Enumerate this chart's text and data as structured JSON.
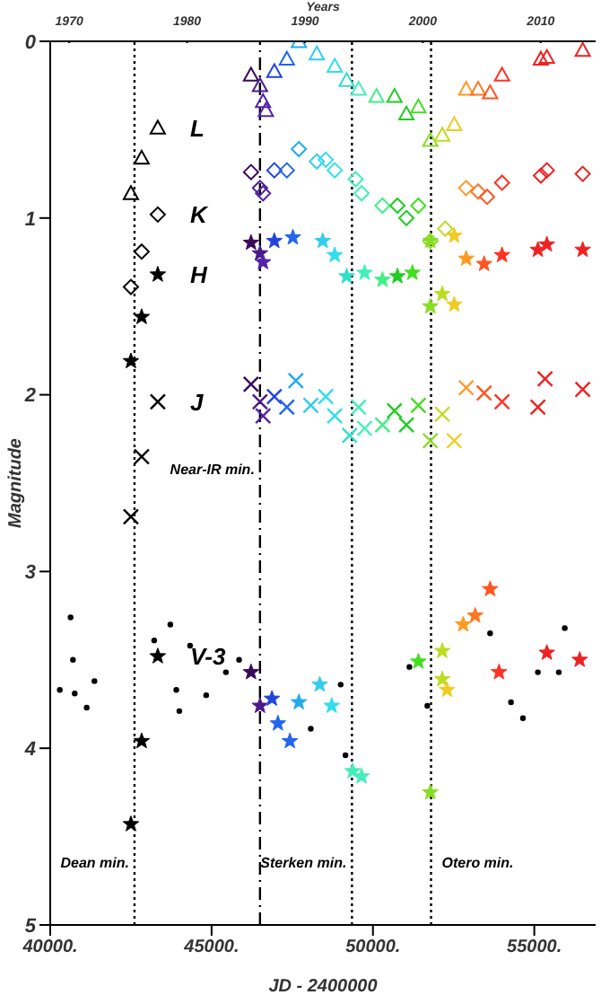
{
  "chart_data": {
    "type": "scatter",
    "xlabel": "JD - 2400000",
    "ylabel": "Magnitude",
    "x2label": "Years",
    "xlim": [
      40000,
      56900
    ],
    "xticks": [
      {
        "value": 40000,
        "label": "40000."
      },
      {
        "value": 45000,
        "label": "45000."
      },
      {
        "value": 50000,
        "label": "50000."
      },
      {
        "value": 55000,
        "label": "55000."
      }
    ],
    "x2lim": [
      1968.39,
      2014.66
    ],
    "x2ticks": [
      1970,
      1980,
      1990,
      2000,
      2010
    ],
    "ylim": [
      5,
      0
    ],
    "yticks": [
      0,
      1,
      2,
      3,
      4,
      5
    ],
    "ref_lines": [
      {
        "axis": "x",
        "value": 42611,
        "line_style": "dotted",
        "label": "Dean min."
      },
      {
        "axis": "x",
        "value": 46500,
        "line_style": "dashed",
        "label": "Near-IR min."
      },
      {
        "axis": "x",
        "value": 49350,
        "line_style": "dotted",
        "label": "Sterken min."
      },
      {
        "axis": "x",
        "value": 51800,
        "line_style": "dotted",
        "label": "Otero min."
      }
    ],
    "series": [
      {
        "name": "L",
        "marker": "triangle",
        "x": [
          42500,
          42833,
          43333,
          46222,
          46500,
          46594,
          46683,
          46944,
          47333,
          47704,
          48260,
          48815,
          49185,
          49556,
          50111,
          50667,
          51037,
          51407,
          51778,
          52148,
          52519,
          52889,
          53259,
          53630,
          54000,
          55204,
          55389,
          56500
        ],
        "values": [
          0.86,
          0.66,
          0.49,
          0.19,
          0.25,
          0.34,
          0.39,
          0.17,
          0.1,
          0.0,
          0.07,
          0.14,
          0.22,
          0.27,
          0.31,
          0.31,
          0.41,
          0.37,
          0.56,
          0.53,
          0.47,
          0.27,
          0.27,
          0.29,
          0.19,
          0.1,
          0.09,
          0.05
        ],
        "colors": [
          "#000000",
          "#000000",
          "#000000",
          "#3a0a5a",
          "#4a1a8a",
          "#5522aa",
          "#5522aa",
          "#2244dd",
          "#2266ee",
          "#22aaee",
          "#33ccee",
          "#33ddee",
          "#33ddcc",
          "#44eebb",
          "#44ee88",
          "#22cc22",
          "#22cc22",
          "#44dd22",
          "#88dd22",
          "#bbdd22",
          "#eecc22",
          "#ff9922",
          "#ff7722",
          "#ff5522",
          "#ff3322",
          "#ee2222",
          "#ee2222",
          "#ee2222"
        ]
      },
      {
        "name": "K",
        "marker": "diamond",
        "x": [
          42500,
          42833,
          43333,
          46222,
          46500,
          46594,
          46944,
          47333,
          47704,
          48260,
          48537,
          48815,
          49463,
          49648,
          50296,
          50759,
          51037,
          51407,
          51778,
          52241,
          52889,
          53259,
          53537,
          54000,
          55204,
          55389,
          56500
        ],
        "values": [
          1.39,
          1.19,
          0.98,
          0.74,
          0.83,
          0.86,
          0.73,
          0.73,
          0.61,
          0.68,
          0.67,
          0.73,
          0.78,
          0.86,
          0.93,
          0.93,
          1.0,
          0.93,
          1.13,
          1.06,
          0.83,
          0.85,
          0.88,
          0.8,
          0.76,
          0.73,
          0.75
        ],
        "colors": [
          "#000000",
          "#000000",
          "#000000",
          "#3a0a5a",
          "#4a1a8a",
          "#5522aa",
          "#2244dd",
          "#2266ee",
          "#22aaee",
          "#33ccee",
          "#33ddee",
          "#33ddee",
          "#44eebb",
          "#44eebb",
          "#44ee88",
          "#22cc22",
          "#22cc22",
          "#44dd22",
          "#88dd22",
          "#bbdd22",
          "#ff9922",
          "#ff7722",
          "#ff5522",
          "#ff3322",
          "#ee2222",
          "#ee2222",
          "#ee2222"
        ]
      },
      {
        "name": "H",
        "marker": "star",
        "x": [
          42500,
          42833,
          43333,
          46222,
          46500,
          46594,
          46944,
          47519,
          48444,
          48815,
          49185,
          49741,
          50296,
          50759,
          51222,
          51778,
          51778,
          52148,
          52519,
          52519,
          52889,
          53444,
          54000,
          55111,
          55389,
          56500
        ],
        "values": [
          1.81,
          1.56,
          1.32,
          1.14,
          1.2,
          1.25,
          1.13,
          1.11,
          1.13,
          1.21,
          1.33,
          1.31,
          1.35,
          1.33,
          1.31,
          1.5,
          1.13,
          1.43,
          1.49,
          1.1,
          1.23,
          1.26,
          1.21,
          1.18,
          1.15,
          1.18
        ],
        "colors": [
          "#000000",
          "#000000",
          "#000000",
          "#3a0a5a",
          "#4a1a8a",
          "#5522aa",
          "#2244dd",
          "#2266ee",
          "#33ccee",
          "#33ddee",
          "#33ddcc",
          "#44eebb",
          "#44ee88",
          "#22cc22",
          "#44dd22",
          "#88dd22",
          "#88dd22",
          "#bbdd22",
          "#eecc22",
          "#eecc22",
          "#ff9922",
          "#ff5522",
          "#ff3322",
          "#ee2222",
          "#ee2222",
          "#ee2222"
        ]
      },
      {
        "name": "J",
        "marker": "cross",
        "x": [
          42500,
          42833,
          43333,
          46222,
          46500,
          46594,
          46944,
          47333,
          47611,
          48074,
          48537,
          48815,
          49278,
          49556,
          49741,
          50296,
          50667,
          51037,
          51407,
          51778,
          52148,
          52519,
          52889,
          53444,
          54000,
          55111,
          55333,
          56500
        ],
        "values": [
          2.69,
          2.35,
          2.04,
          1.94,
          2.04,
          2.12,
          2.01,
          2.07,
          1.92,
          2.06,
          2.01,
          2.12,
          2.23,
          2.07,
          2.19,
          2.17,
          2.09,
          2.17,
          2.06,
          2.26,
          2.11,
          2.26,
          1.96,
          1.99,
          2.04,
          2.07,
          1.91,
          1.97
        ],
        "colors": [
          "#000000",
          "#000000",
          "#000000",
          "#3a0a5a",
          "#4a1a8a",
          "#5522aa",
          "#2244dd",
          "#2266ee",
          "#22aaee",
          "#33ccee",
          "#33ddee",
          "#33ddee",
          "#33ddcc",
          "#44eebb",
          "#44eebb",
          "#44ee88",
          "#22cc22",
          "#22cc22",
          "#44dd22",
          "#88dd22",
          "#bbdd22",
          "#eecc22",
          "#ff9922",
          "#ff5522",
          "#ff3322",
          "#ee2222",
          "#ee2222",
          "#ee2222"
        ]
      },
      {
        "name": "V-3",
        "marker": "star",
        "x": [
          42500,
          42833,
          43333,
          46222,
          46500,
          46870,
          47056,
          47426,
          47704,
          48352,
          48722,
          49370,
          49648,
          51407,
          51778,
          52148,
          52148,
          52296,
          52796,
          53167,
          53630,
          53907,
          55389,
          56407
        ],
        "values": [
          4.43,
          3.96,
          3.48,
          3.57,
          3.76,
          3.72,
          3.86,
          3.96,
          3.74,
          3.64,
          3.76,
          4.13,
          4.16,
          3.51,
          4.25,
          3.45,
          3.61,
          3.67,
          3.3,
          3.25,
          3.1,
          3.57,
          3.46,
          3.5
        ],
        "colors": [
          "#000000",
          "#000000",
          "#000000",
          "#3a0a5a",
          "#4a1a8a",
          "#2244dd",
          "#2266ee",
          "#2266ee",
          "#22aaee",
          "#33ccee",
          "#33ddee",
          "#44eebb",
          "#44eebb",
          "#44dd22",
          "#88dd22",
          "#bbdd22",
          "#bbdd22",
          "#eecc22",
          "#ff9922",
          "#ff7722",
          "#ff5522",
          "#ff3322",
          "#ee2222",
          "#ee2222"
        ]
      },
      {
        "marker": "circle",
        "color": "#000000",
        "x": [
          40296,
          40630,
          40704,
          40759,
          41130,
          41370,
          43222,
          43722,
          43907,
          44000,
          44333,
          44833,
          45444,
          45852,
          48074,
          49000,
          49148,
          51130,
          51685,
          53630,
          54278,
          54648,
          55111,
          55759,
          55944
        ],
        "values": [
          3.67,
          3.26,
          3.5,
          3.69,
          3.77,
          3.62,
          3.39,
          3.3,
          3.67,
          3.79,
          3.42,
          3.7,
          3.57,
          3.5,
          3.89,
          3.64,
          4.04,
          3.54,
          3.76,
          3.35,
          3.74,
          3.83,
          3.57,
          3.57,
          3.32
        ]
      }
    ]
  }
}
